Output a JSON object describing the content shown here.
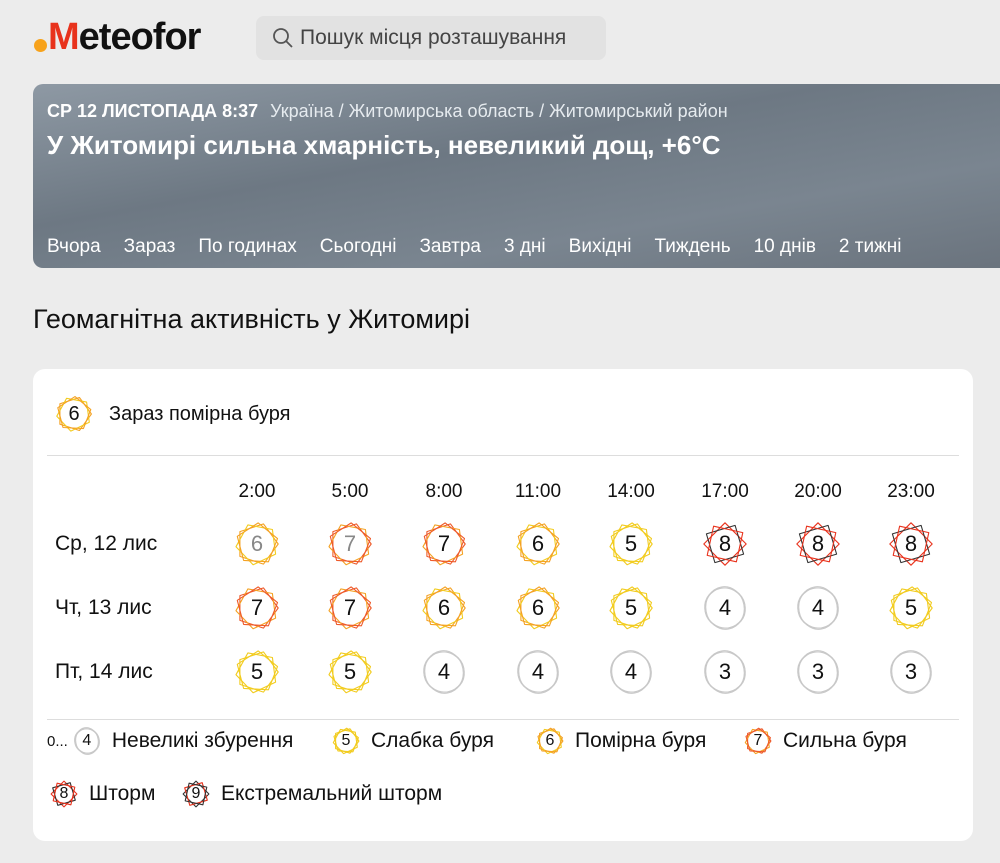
{
  "logo": {
    "text": "eteofor",
    "letter": "M"
  },
  "search": {
    "placeholder": "Пошук місця розташування",
    "icon": "search-icon"
  },
  "banner": {
    "date": "СР 12 ЛИСТОПАДА 8:37",
    "breadcrumb": "Україна / Житомирська область / Житомирський район",
    "headline": "У Житомирі сильна хмарність, невеликий дощ, +6°C",
    "nav": [
      "Вчора",
      "Зараз",
      "По годинах",
      "Сьогодні",
      "Завтра",
      "3 дні",
      "Вихідні",
      "Тиждень",
      "10 днів",
      "2 тижні"
    ]
  },
  "page_title": "Геомагнітна активність у Житомирі",
  "now": {
    "value": "6",
    "label": "Зараз помірна буря"
  },
  "times": [
    "2:00",
    "5:00",
    "8:00",
    "11:00",
    "14:00",
    "17:00",
    "20:00",
    "23:00"
  ],
  "rows": [
    {
      "day": "Ср, 12 лис",
      "values": [
        6,
        7,
        7,
        6,
        5,
        8,
        8,
        8
      ],
      "past": [
        true,
        true,
        false,
        false,
        false,
        false,
        false,
        false
      ]
    },
    {
      "day": "Чт, 13 лис",
      "values": [
        7,
        7,
        6,
        6,
        5,
        4,
        4,
        5
      ],
      "past": [
        false,
        false,
        false,
        false,
        false,
        false,
        false,
        false
      ]
    },
    {
      "day": "Пт, 14 лис",
      "values": [
        5,
        5,
        4,
        4,
        4,
        3,
        3,
        3
      ],
      "past": [
        false,
        false,
        false,
        false,
        false,
        false,
        false,
        false
      ]
    }
  ],
  "legend": [
    {
      "prefix": "0...",
      "value": "4",
      "label": "Невеликі збурення"
    },
    {
      "value": "5",
      "label": "Слабка буря"
    },
    {
      "value": "6",
      "label": "Помірна буря"
    },
    {
      "value": "7",
      "label": "Сильна буря"
    },
    {
      "value": "8",
      "label": "Шторм"
    },
    {
      "value": "9",
      "label": "Екстремальний шторм"
    }
  ],
  "colors": {
    "brand": "#e8321c",
    "level_0_4": "#c8c8c8",
    "level_5": "#f2cc1f",
    "level_6": "#f4a223",
    "level_7": "#ee5a2a",
    "level_8": "#e8321c",
    "level_9": "#333333"
  }
}
